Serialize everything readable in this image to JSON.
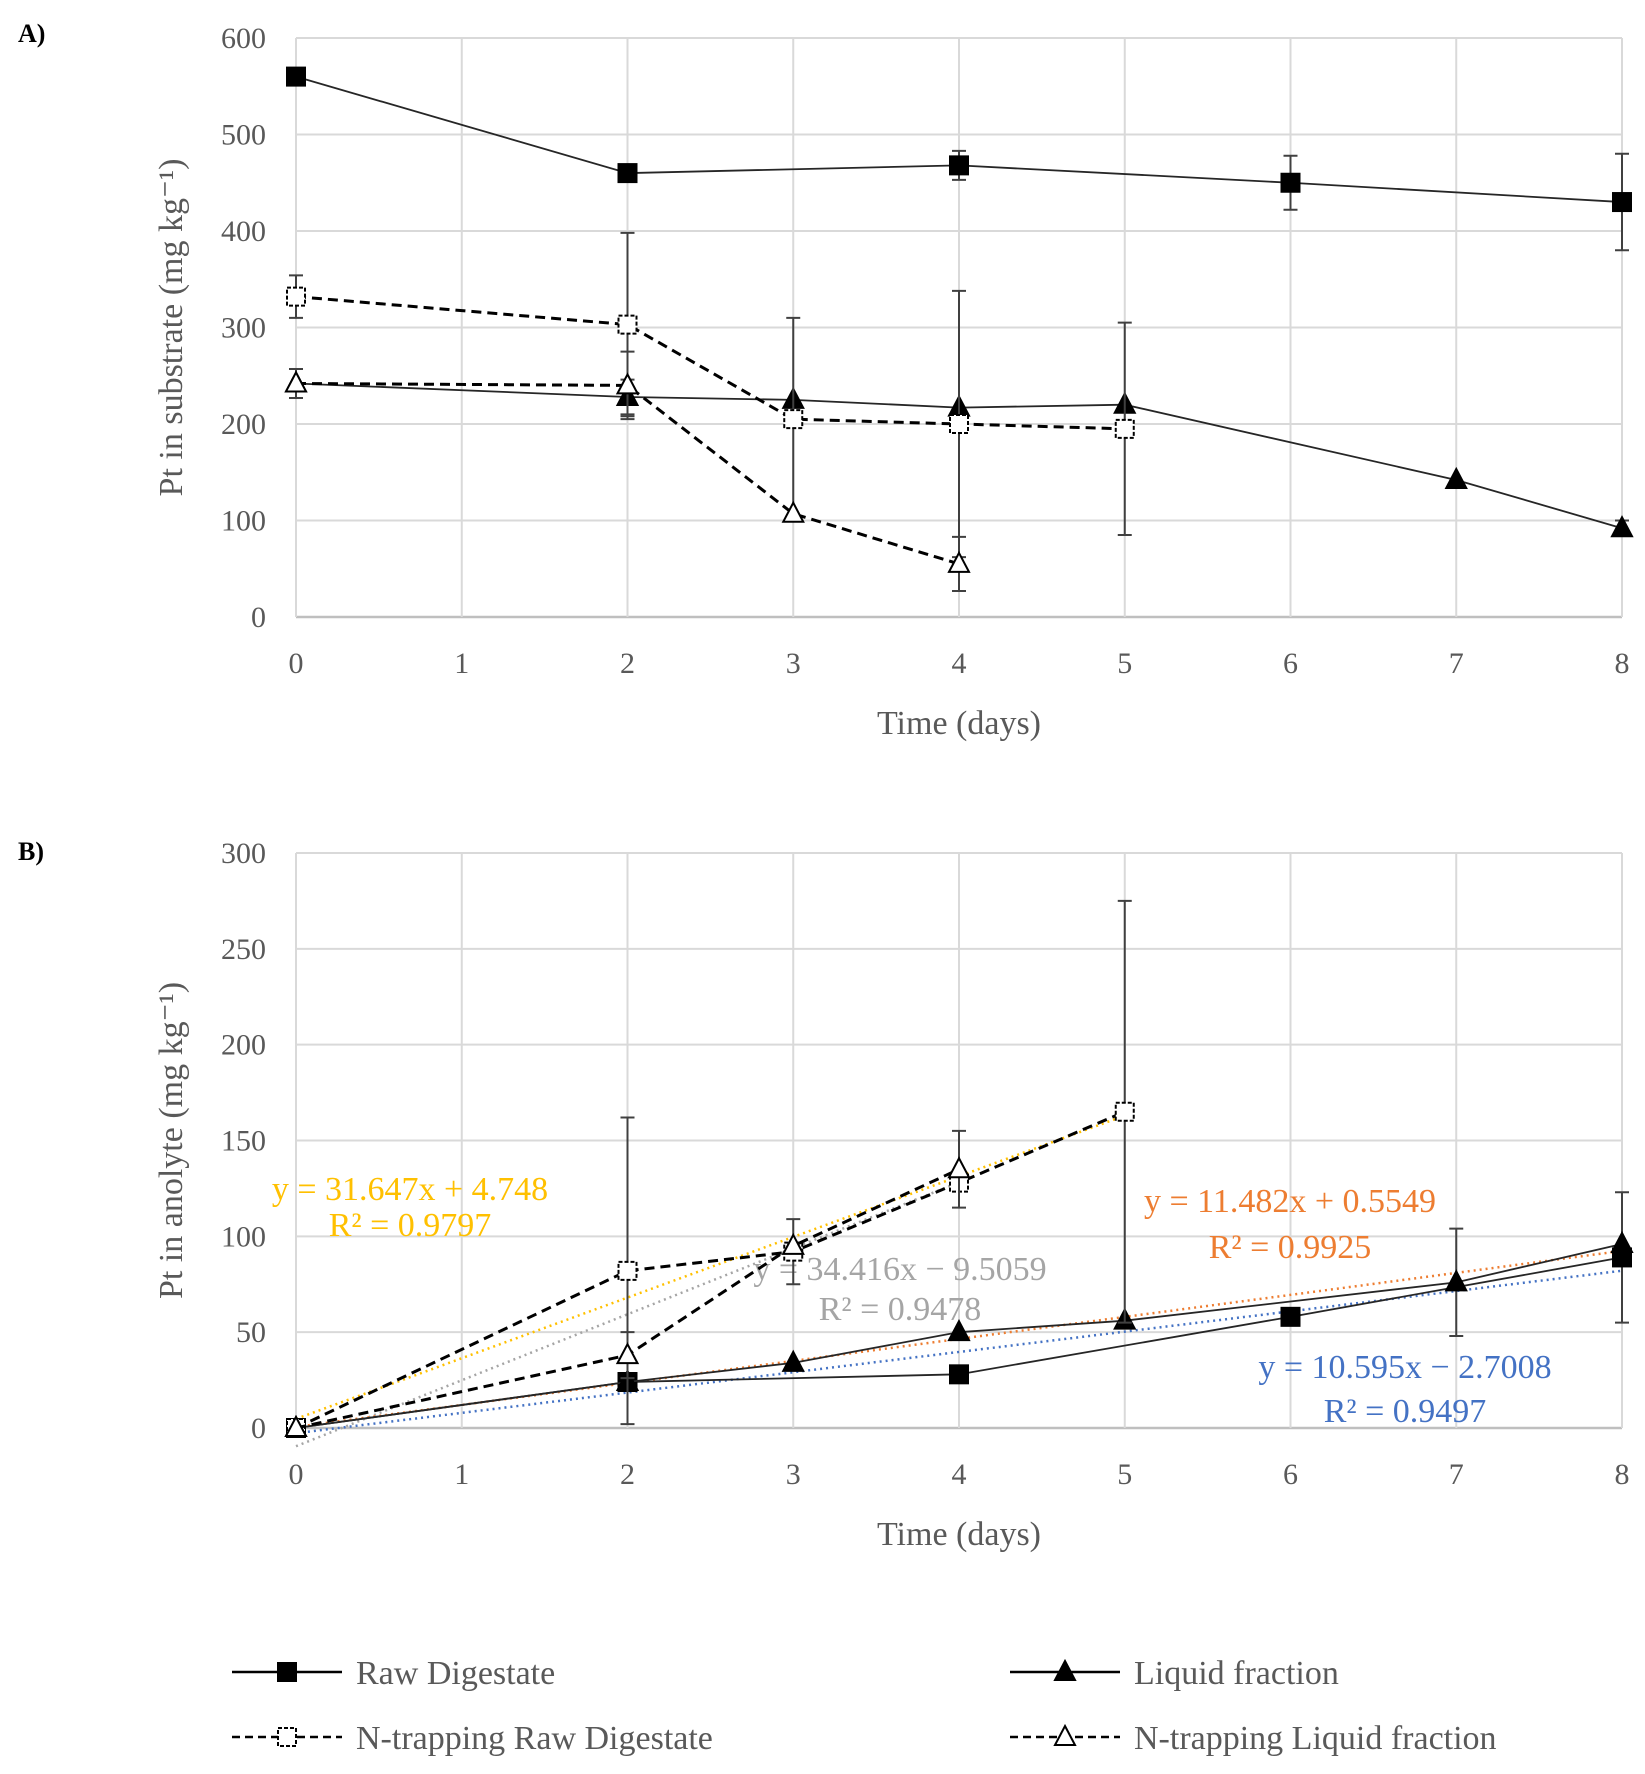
{
  "chart_data": [
    {
      "panel": "A)",
      "type": "line",
      "xlabel": "Time (days)",
      "ylabel": "Pt in substrate (mg kg⁻¹)",
      "xlim": [
        0,
        8
      ],
      "ylim": [
        0,
        600
      ],
      "xticks": [
        0,
        1,
        2,
        3,
        4,
        5,
        6,
        7,
        8
      ],
      "yticks": [
        0,
        100,
        200,
        300,
        400,
        500,
        600
      ],
      "grid": true,
      "series": [
        {
          "name": "Raw Digestate",
          "marker": "square-filled",
          "dash": false,
          "x": [
            0,
            2,
            4,
            6,
            8
          ],
          "y": [
            560,
            460,
            468,
            450,
            430
          ],
          "err": [
            0,
            0,
            15,
            28,
            50
          ]
        },
        {
          "name": "Liquid fraction",
          "marker": "triangle-filled",
          "dash": false,
          "x": [
            0,
            2,
            3,
            4,
            5,
            7,
            8
          ],
          "y": [
            242,
            228,
            225,
            217,
            220,
            142,
            92
          ],
          "err": [
            0,
            18,
            0,
            0,
            0,
            0,
            8
          ]
        },
        {
          "name": "N-trapping Raw Digestate",
          "marker": "square-open",
          "dash": true,
          "x": [
            0,
            2,
            3,
            4,
            5
          ],
          "y": [
            332,
            303,
            205,
            200,
            195
          ],
          "err": [
            22,
            95,
            105,
            138,
            110
          ]
        },
        {
          "name": "N-trapping Liquid fraction",
          "marker": "triangle-open",
          "dash": true,
          "x": [
            0,
            2,
            3,
            4
          ],
          "y": [
            242,
            240,
            107,
            55
          ],
          "err": [
            15,
            35,
            0,
            28
          ]
        }
      ],
      "trendlines": []
    },
    {
      "panel": "B)",
      "type": "line",
      "xlabel": "Time (days)",
      "ylabel": "Pt in anolyte (mg kg⁻¹)",
      "xlim": [
        0,
        8
      ],
      "ylim": [
        0,
        300
      ],
      "xticks": [
        0,
        1,
        2,
        3,
        4,
        5,
        6,
        7,
        8
      ],
      "yticks": [
        0,
        50,
        100,
        150,
        200,
        250,
        300
      ],
      "grid": true,
      "series": [
        {
          "name": "Raw Digestate",
          "marker": "square-filled",
          "dash": false,
          "x": [
            0,
            2,
            4,
            6,
            8
          ],
          "y": [
            0,
            24,
            28,
            58,
            89
          ],
          "err": [
            0,
            0,
            0,
            0,
            34
          ]
        },
        {
          "name": "Liquid fraction",
          "marker": "triangle-filled",
          "dash": false,
          "x": [
            0,
            2,
            3,
            4,
            5,
            7,
            8
          ],
          "y": [
            0,
            24,
            34,
            50,
            56,
            76,
            96
          ],
          "err": [
            0,
            0,
            0,
            0,
            0,
            28,
            0
          ]
        },
        {
          "name": "N-trapping Raw Digestate",
          "marker": "square-open",
          "dash": true,
          "x": [
            0,
            2,
            3,
            4,
            5
          ],
          "y": [
            0,
            82,
            92,
            128,
            165
          ],
          "err": [
            0,
            80,
            17,
            0,
            110
          ]
        },
        {
          "name": "N-trapping Liquid fraction",
          "marker": "triangle-open",
          "dash": true,
          "x": [
            0,
            2,
            3,
            4
          ],
          "y": [
            0,
            38,
            95,
            135
          ],
          "err": [
            0,
            12,
            0,
            20
          ]
        }
      ],
      "trendlines": [
        {
          "slope": 31.647,
          "intercept": 4.748,
          "x": [
            0,
            5
          ],
          "color": "#FFC000",
          "eq": "y = 31.647x + 4.748",
          "r2": "R² = 0.9797"
        },
        {
          "slope": 34.416,
          "intercept": -9.5059,
          "x": [
            0,
            4
          ],
          "color": "#A5A5A5",
          "eq": "y = 34.416x − 9.5059",
          "r2": "R² = 0.9478"
        },
        {
          "slope": 11.482,
          "intercept": 0.5549,
          "x": [
            0,
            8
          ],
          "color": "#ED7D31",
          "eq": "y = 11.482x + 0.5549",
          "r2": "R² = 0.9925"
        },
        {
          "slope": 10.595,
          "intercept": -2.7008,
          "x": [
            0,
            8
          ],
          "color": "#4472C4",
          "eq": "y = 10.595x − 2.7008",
          "r2": "R² = 0.9497"
        }
      ]
    }
  ],
  "legend": [
    "Raw Digestate",
    "Liquid fraction",
    "N-trapping Raw Digestate",
    "N-trapping Liquid fraction"
  ]
}
